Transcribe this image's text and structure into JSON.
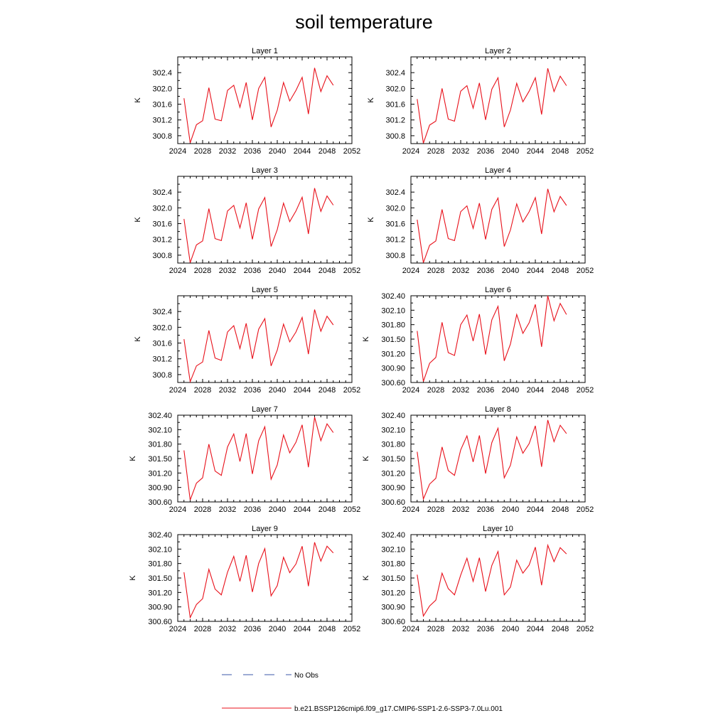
{
  "title": "soil temperature",
  "colors": {
    "model": "#e8101a",
    "obs": "#3b57a8",
    "axis": "#000000"
  },
  "legend": {
    "obs_label": "No Obs",
    "model_label": "b.e21.BSSP126cmip6.f09_g17.CMIP6-SSP1-2.6-SSP3-7.0Lu.001"
  },
  "chart_data": {
    "type": "line",
    "x": [
      2025,
      2026,
      2027,
      2028,
      2029,
      2030,
      2031,
      2032,
      2033,
      2034,
      2035,
      2036,
      2037,
      2038,
      2039,
      2040,
      2041,
      2042,
      2043,
      2044,
      2045,
      2046,
      2047,
      2048,
      2049
    ],
    "xlim": [
      2024,
      2052
    ],
    "xticks": [
      "2024",
      "2028",
      "2032",
      "2036",
      "2040",
      "2044",
      "2048",
      "2052"
    ],
    "panels": [
      {
        "title": "Layer 1",
        "ylabel": "K",
        "ylim": [
          300.6,
          302.8
        ],
        "yticks": [
          "300.8",
          "301.2",
          "301.6",
          "302.0",
          "302.4"
        ],
        "values": [
          301.75,
          300.62,
          301.08,
          301.18,
          302.02,
          301.22,
          301.18,
          301.95,
          302.08,
          301.52,
          302.15,
          301.2,
          302.0,
          302.28,
          301.02,
          301.45,
          302.15,
          301.68,
          301.95,
          302.28,
          301.35,
          302.52,
          301.92,
          302.32,
          302.08
        ]
      },
      {
        "title": "Layer 2",
        "ylabel": "K",
        "ylim": [
          300.6,
          302.8
        ],
        "yticks": [
          "300.8",
          "301.2",
          "301.6",
          "302.0",
          "302.4"
        ],
        "values": [
          301.73,
          300.61,
          301.07,
          301.17,
          302.0,
          301.22,
          301.17,
          301.93,
          302.07,
          301.5,
          302.14,
          301.2,
          301.98,
          302.27,
          301.02,
          301.45,
          302.13,
          301.66,
          301.93,
          302.27,
          301.34,
          302.51,
          301.92,
          302.31,
          302.07
        ]
      },
      {
        "title": "Layer 3",
        "ylabel": "K",
        "ylim": [
          300.6,
          302.8
        ],
        "yticks": [
          "300.8",
          "301.2",
          "301.6",
          "302.0",
          "302.4"
        ],
        "values": [
          301.72,
          300.61,
          301.06,
          301.16,
          301.98,
          301.22,
          301.17,
          301.92,
          302.06,
          301.49,
          302.13,
          301.2,
          301.97,
          302.26,
          301.02,
          301.45,
          302.12,
          301.65,
          301.92,
          302.27,
          301.34,
          302.5,
          301.91,
          302.3,
          302.07
        ]
      },
      {
        "title": "Layer 4",
        "ylabel": "K",
        "ylim": [
          300.6,
          302.8
        ],
        "yticks": [
          "300.8",
          "301.2",
          "301.6",
          "302.0",
          "302.4"
        ],
        "values": [
          301.7,
          300.61,
          301.05,
          301.16,
          301.96,
          301.22,
          301.17,
          301.9,
          302.05,
          301.48,
          302.12,
          301.2,
          301.96,
          302.25,
          301.02,
          301.44,
          302.1,
          301.64,
          301.9,
          302.26,
          301.34,
          302.48,
          301.9,
          302.29,
          302.06
        ]
      },
      {
        "title": "Layer 5",
        "ylabel": "K",
        "ylim": [
          300.6,
          302.8
        ],
        "yticks": [
          "300.8",
          "301.2",
          "301.6",
          "302.0",
          "302.4"
        ],
        "values": [
          301.7,
          300.62,
          301.02,
          301.12,
          301.92,
          301.22,
          301.16,
          301.88,
          302.04,
          301.46,
          302.1,
          301.2,
          301.95,
          302.22,
          301.02,
          301.42,
          302.08,
          301.63,
          301.88,
          302.25,
          301.32,
          302.45,
          301.9,
          302.28,
          302.06
        ]
      },
      {
        "title": "Layer 6",
        "ylabel": "K",
        "ylim": [
          300.6,
          302.4
        ],
        "yticks": [
          "300.60",
          "300.90",
          "301.20",
          "301.50",
          "301.80",
          "302.10",
          "302.40"
        ],
        "values": [
          301.67,
          300.62,
          301.0,
          301.12,
          301.85,
          301.22,
          301.16,
          301.8,
          302.0,
          301.46,
          302.02,
          301.18,
          301.9,
          302.18,
          301.05,
          301.4,
          302.01,
          301.62,
          301.84,
          302.22,
          301.34,
          302.4,
          301.88,
          302.24,
          302.01
        ]
      },
      {
        "title": "Layer 7",
        "ylabel": "K",
        "ylim": [
          300.6,
          302.4
        ],
        "yticks": [
          "300.60",
          "300.90",
          "301.20",
          "301.50",
          "301.80",
          "302.10",
          "302.40"
        ],
        "values": [
          301.67,
          300.64,
          300.99,
          301.1,
          301.8,
          301.24,
          301.15,
          301.74,
          302.01,
          301.44,
          302.02,
          301.18,
          301.87,
          302.16,
          301.07,
          301.37,
          301.99,
          301.62,
          301.84,
          302.2,
          301.32,
          302.36,
          301.87,
          302.22,
          302.04
        ]
      },
      {
        "title": "Layer 8",
        "ylabel": "K",
        "ylim": [
          300.6,
          302.4
        ],
        "yticks": [
          "300.60",
          "300.90",
          "301.20",
          "301.50",
          "301.80",
          "302.10",
          "302.40"
        ],
        "values": [
          301.64,
          300.66,
          300.97,
          301.09,
          301.74,
          301.25,
          301.15,
          301.68,
          301.97,
          301.43,
          301.98,
          301.19,
          301.83,
          302.13,
          301.1,
          301.36,
          301.95,
          301.61,
          301.81,
          302.18,
          301.33,
          302.3,
          301.85,
          302.19,
          302.02
        ]
      },
      {
        "title": "Layer 9",
        "ylabel": "K",
        "ylim": [
          300.6,
          302.4
        ],
        "yticks": [
          "300.60",
          "300.90",
          "301.20",
          "301.50",
          "301.80",
          "302.10",
          "302.40"
        ],
        "values": [
          301.62,
          300.68,
          300.95,
          301.07,
          301.68,
          301.27,
          301.15,
          301.62,
          301.95,
          301.43,
          301.97,
          301.21,
          301.8,
          302.11,
          301.13,
          301.34,
          301.93,
          301.61,
          301.79,
          302.16,
          301.33,
          302.24,
          301.85,
          302.16,
          302.02
        ]
      },
      {
        "title": "Layer 10",
        "ylabel": "K",
        "ylim": [
          300.6,
          302.4
        ],
        "yticks": [
          "300.60",
          "300.90",
          "301.20",
          "301.50",
          "301.80",
          "302.10",
          "302.40"
        ],
        "values": [
          301.57,
          300.71,
          300.92,
          301.04,
          301.6,
          301.28,
          301.15,
          301.56,
          301.91,
          301.43,
          301.92,
          301.22,
          301.76,
          302.05,
          301.15,
          301.31,
          301.87,
          301.6,
          301.77,
          302.14,
          301.35,
          302.18,
          301.84,
          302.13,
          302.0
        ]
      }
    ]
  }
}
